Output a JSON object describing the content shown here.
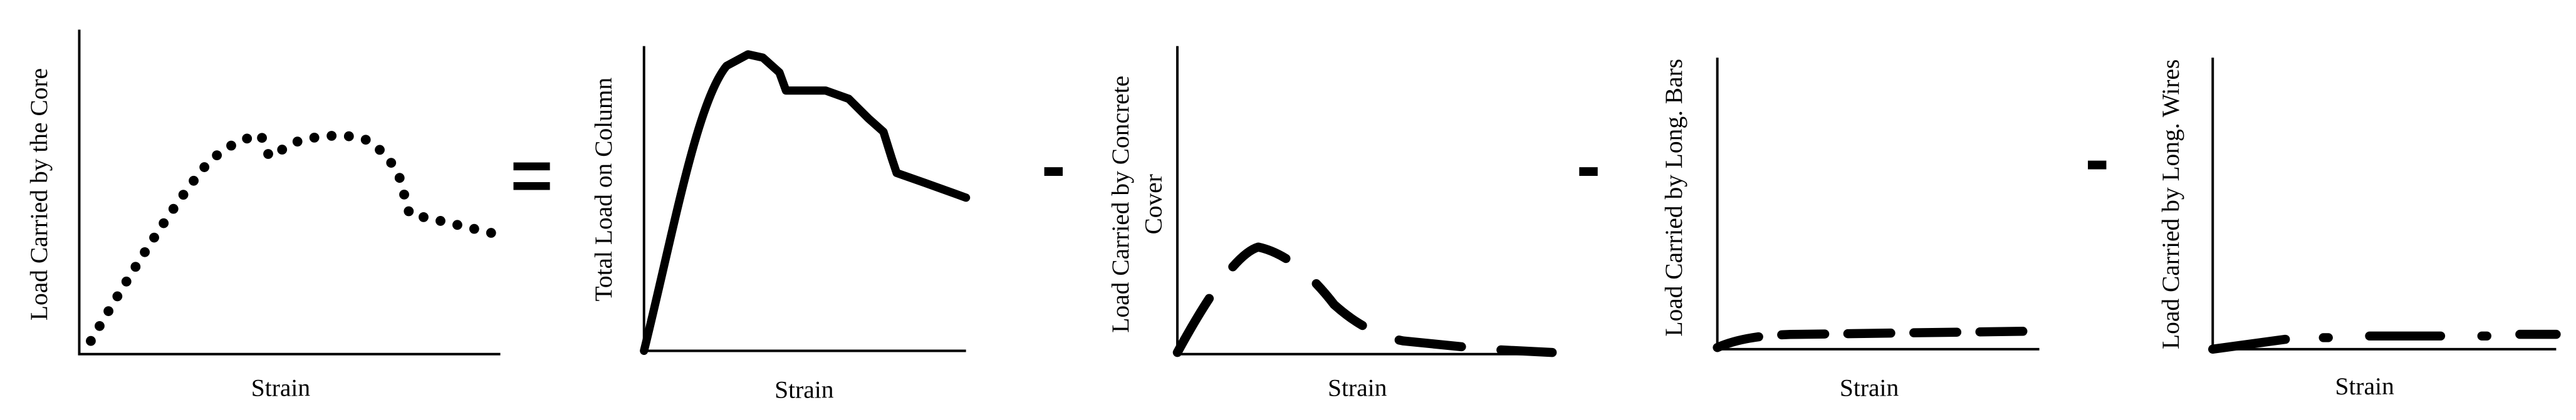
{
  "panels": [
    {
      "y_label_lines": [
        "Load Carried by the Core"
      ],
      "x_label": "Strain"
    },
    {
      "y_label_lines": [
        "Total Load on Column"
      ],
      "x_label": "Strain"
    },
    {
      "y_label_lines": [
        "Load Carried by Concrete",
        "Cover"
      ],
      "x_label": "Strain"
    },
    {
      "y_label_lines": [
        "Load Carried by Long. Bars"
      ],
      "x_label": "Strain"
    },
    {
      "y_label_lines": [
        "Load Carried by Long. Wires"
      ],
      "x_label": "Strain"
    }
  ],
  "operators": [
    "=",
    "-",
    "-",
    "-"
  ]
}
